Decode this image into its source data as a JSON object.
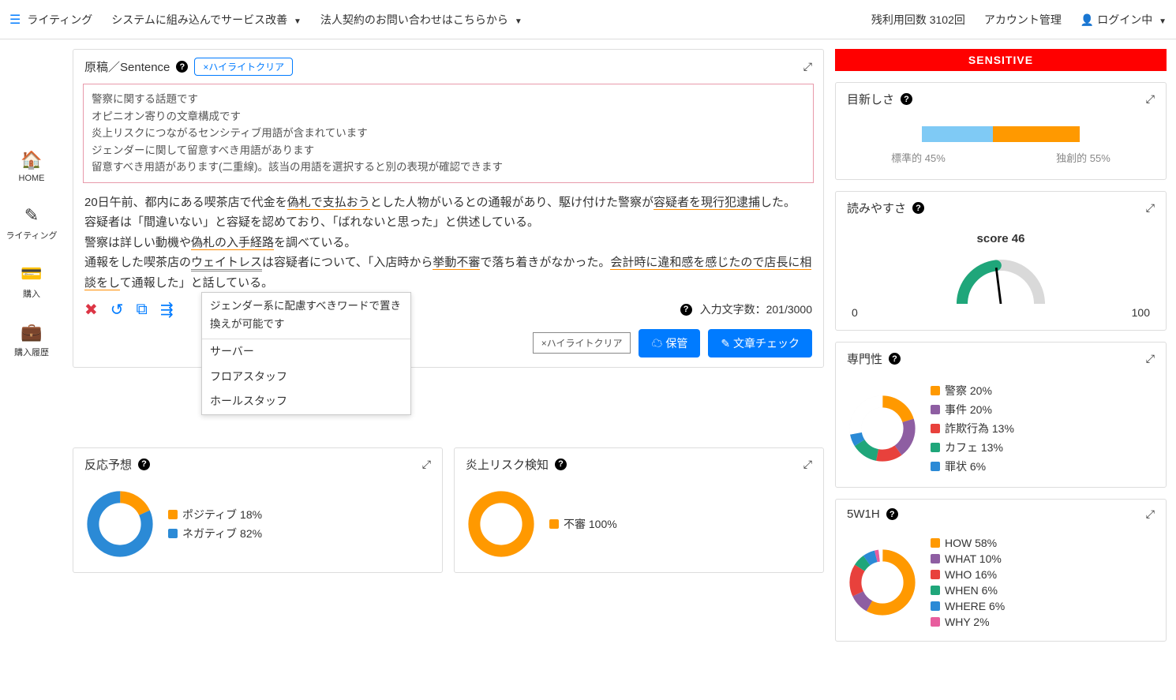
{
  "topbar": {
    "brand": "ライティング",
    "nav1": "システムに組み込んでサービス改善",
    "nav2": "法人契約のお問い合わせはこちらから",
    "remaining": "残利用回数 3102回",
    "account": "アカウント管理",
    "login": "ログイン中"
  },
  "sidebar": {
    "home": "HOME",
    "writing": "ライティング",
    "purchase": "購入",
    "history": "購入履歴"
  },
  "editor": {
    "title": "原稿／Sentence",
    "highlight_clear": "×ハイライトクリア",
    "notes": [
      "警察に関する話題です",
      "オピニオン寄りの文章構成です",
      "炎上リスクにつながるセンシティブ用語が含まれています",
      "ジェンダーに関して留意すべき用語があります",
      "留意すべき用語があります(二重線)。該当の用語を選択すると別の表現が確認できます"
    ],
    "body_segments": [
      {
        "t": "20日午前、都内にある喫茶店で代金を"
      },
      {
        "t": "偽札で支払おう",
        "u": "orange"
      },
      {
        "t": "とした人物がいるとの通報があり、駆け付けた警察が"
      },
      {
        "t": "容疑者を現行犯逮捕",
        "u": "orange"
      },
      {
        "t": "した。"
      },
      {
        "br": true
      },
      {
        "t": "容疑者は「間違いない」と容疑を認めており、「ばれないと思った」と供述している。"
      },
      {
        "br": true
      },
      {
        "t": "警察は詳しい動機や"
      },
      {
        "t": "偽札の入手経路",
        "u": "orange"
      },
      {
        "t": "を調べている。"
      },
      {
        "br": true
      },
      {
        "t": "通報をした喫茶店の"
      },
      {
        "t": "ウェイトレス",
        "u": "double"
      },
      {
        "t": "は容疑者について、「入店時から"
      },
      {
        "t": "挙動不審",
        "u": "orange"
      },
      {
        "t": "で落ち着きがなかった。"
      },
      {
        "t": "会計時に違和感を感じたので店長に相談をし",
        "u": "orange"
      },
      {
        "t": "て通報した」と話している。"
      }
    ],
    "tooltip_head": "ジェンダー系に配慮すべきワードで置き換えが可能です",
    "tooltip_items": [
      "サーバー",
      "フロアスタッフ",
      "ホールスタッフ"
    ],
    "char_count_label": "入力文字数：201/3000",
    "save_btn": "保管",
    "check_btn": "文章チェック",
    "highlight_clear2": "×ハイライトクリア"
  },
  "reaction": {
    "title": "反応予想",
    "legend": [
      {
        "label": "ポジティブ 18%",
        "color": "#ff9900",
        "value": 18
      },
      {
        "label": "ネガティブ 82%",
        "color": "#2b8ad6",
        "value": 82
      }
    ]
  },
  "flame": {
    "title": "炎上リスク検知",
    "legend": [
      {
        "label": "不審 100%",
        "color": "#ff9900",
        "value": 100
      }
    ]
  },
  "sensitive_banner": "SENSITIVE",
  "novelty": {
    "title": "目新しさ",
    "standard_pct": 45,
    "original_pct": 55,
    "standard_label": "標準的 45%",
    "original_label": "独創的 55%",
    "color_standard": "#7fcaf5",
    "color_original": "#ff9900"
  },
  "readability": {
    "title": "読みやすさ",
    "score_label": "score 46",
    "score": 46,
    "min": "0",
    "max": "100",
    "fill_color": "#1fa67a",
    "rest_color": "#d9d9d9"
  },
  "expertise": {
    "title": "専門性",
    "items": [
      {
        "label": "警察 20%",
        "color": "#ff9900",
        "value": 20
      },
      {
        "label": "事件 20%",
        "color": "#8e5ea2",
        "value": 20
      },
      {
        "label": "詐欺行為 13%",
        "color": "#e8413c",
        "value": 13
      },
      {
        "label": "カフェ 13%",
        "color": "#1fa67a",
        "value": 13
      },
      {
        "label": "罪状 6%",
        "color": "#2b8ad6",
        "value": 6
      }
    ],
    "remainder_color": "#ffffff"
  },
  "fwoh": {
    "title": "5W1H",
    "items": [
      {
        "label": "HOW 58%",
        "color": "#ff9900",
        "value": 58
      },
      {
        "label": "WHAT 10%",
        "color": "#8e5ea2",
        "value": 10
      },
      {
        "label": "WHO 16%",
        "color": "#e8413c",
        "value": 16
      },
      {
        "label": "WHEN 6%",
        "color": "#1fa67a",
        "value": 6
      },
      {
        "label": "WHERE 6%",
        "color": "#2b8ad6",
        "value": 6
      },
      {
        "label": "WHY 2%",
        "color": "#e85d9e",
        "value": 2
      }
    ],
    "remainder_color": "#ffffff"
  }
}
